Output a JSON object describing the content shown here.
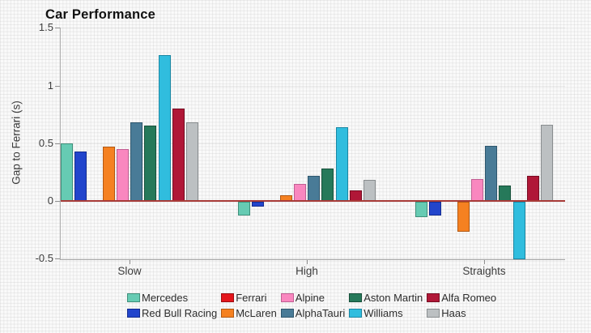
{
  "title": "Car Performance",
  "chart_data": {
    "type": "bar",
    "title": "Car Performance",
    "xlabel": "",
    "ylabel": "Gap to Ferrari (s)",
    "categories": [
      "Slow",
      "High",
      "Straights"
    ],
    "ylim": [
      -0.5,
      1.5
    ],
    "yticks": [
      1.5,
      1,
      0.5,
      0,
      -0.5
    ],
    "ytick_labels": [
      "1.5",
      "1",
      "0.5",
      "0",
      "-0.5"
    ],
    "grid": true,
    "legend_position": "bottom",
    "zero_line_color": "#a83b38",
    "axis_color": "#b0b0b0",
    "tick_color": "#8f8f8f",
    "series": [
      {
        "name": "Mercedes",
        "color": "#66CBB3",
        "border": "#3f8f7a",
        "values": [
          0.5,
          -0.12,
          -0.13
        ]
      },
      {
        "name": "Red Bull Racing",
        "color": "#2245CC",
        "border": "#142c8f",
        "values": [
          0.43,
          -0.04,
          -0.12
        ]
      },
      {
        "name": "Ferrari",
        "color": "#E4161C",
        "border": "#9c0d11",
        "values": [
          0.0,
          0.0,
          0.0
        ]
      },
      {
        "name": "McLaren",
        "color": "#F58121",
        "border": "#b25812",
        "values": [
          0.47,
          0.05,
          -0.26
        ]
      },
      {
        "name": "Alpine",
        "color": "#F987BF",
        "border": "#c05f93",
        "values": [
          0.45,
          0.15,
          0.19
        ]
      },
      {
        "name": "AlphaTauri",
        "color": "#497B97",
        "border": "#2e566d",
        "values": [
          0.68,
          0.22,
          0.48
        ]
      },
      {
        "name": "Aston Martin",
        "color": "#26795A",
        "border": "#16503a",
        "values": [
          0.65,
          0.28,
          0.13
        ]
      },
      {
        "name": "Williams",
        "color": "#30BDDE",
        "border": "#1b87a3",
        "values": [
          1.26,
          0.64,
          -0.5
        ]
      },
      {
        "name": "Alfa Romeo",
        "color": "#B01737",
        "border": "#770c22",
        "values": [
          0.8,
          0.09,
          0.22
        ]
      },
      {
        "name": "Haas",
        "color": "#BCC0C2",
        "border": "#898d8f",
        "values": [
          0.68,
          0.18,
          0.66
        ]
      }
    ]
  }
}
